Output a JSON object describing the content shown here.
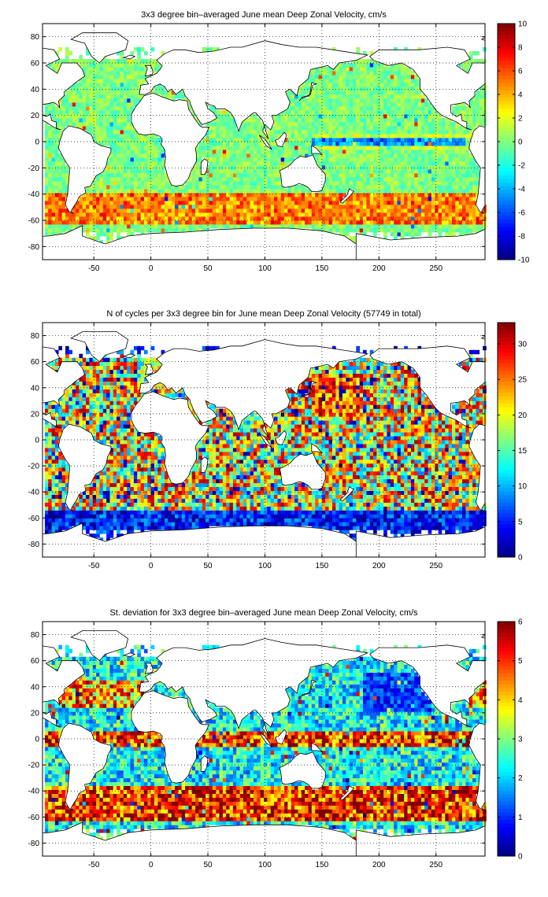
{
  "chart_data": [
    {
      "type": "heatmap",
      "title": "3x3 degree bin–averaged June mean Deep Zonal Velocity, cm/s",
      "xlim": [
        -95,
        293
      ],
      "ylim": [
        -90,
        90
      ],
      "xticks": [
        -50,
        0,
        50,
        100,
        150,
        200,
        250
      ],
      "yticks": [
        -80,
        -60,
        -40,
        -20,
        0,
        20,
        40,
        60,
        80
      ],
      "colorbar": {
        "min": -10,
        "max": 10,
        "ticks": [
          -10,
          -8,
          -6,
          -4,
          -2,
          0,
          2,
          4,
          6,
          8,
          10
        ]
      },
      "colormap": "jet",
      "grid": true,
      "bin_size_deg": 3,
      "overlay": "coastlines",
      "features": [
        {
          "region": "Southern Ocean band",
          "lat_range": [
            -62,
            -40
          ],
          "lon_range": [
            -90,
            290
          ],
          "value": 5
        },
        {
          "region": "Equatorial Pacific band",
          "lat_range": [
            -3,
            3
          ],
          "lon_range": [
            140,
            270
          ],
          "value": -4
        },
        {
          "region": "Interior ocean",
          "value": 0
        }
      ]
    },
    {
      "type": "heatmap",
      "title": "N of cycles per 3x3 degree bin for June mean Deep Zonal Velocity (57749 in total)",
      "xlim": [
        -95,
        293
      ],
      "ylim": [
        -90,
        90
      ],
      "xticks": [
        -50,
        0,
        50,
        100,
        150,
        200,
        250
      ],
      "yticks": [
        -80,
        -60,
        -40,
        -20,
        0,
        20,
        40,
        60,
        80
      ],
      "colorbar": {
        "min": 0,
        "max": 33,
        "ticks": [
          0,
          5,
          10,
          15,
          20,
          25,
          30
        ]
      },
      "colormap": "jet",
      "grid": true,
      "bin_size_deg": 3,
      "overlay": "coastlines",
      "features": [
        {
          "region": "Southern Ocean edge",
          "lat_range": [
            -70,
            -55
          ],
          "value": 3
        },
        {
          "region": "NW Pacific",
          "lat_range": [
            20,
            50
          ],
          "lon_range": [
            140,
            180
          ],
          "value": 28
        },
        {
          "region": "Interior ocean",
          "value": 18
        }
      ]
    },
    {
      "type": "heatmap",
      "title": "St. deviation for 3x3 degree bin–averaged June mean Deep Zonal Velocity, cm/s",
      "xlim": [
        -95,
        293
      ],
      "ylim": [
        -90,
        90
      ],
      "xticks": [
        -50,
        0,
        50,
        100,
        150,
        200,
        250
      ],
      "yticks": [
        -80,
        -60,
        -40,
        -20,
        0,
        20,
        40,
        60,
        80
      ],
      "colorbar": {
        "min": 0,
        "max": 6,
        "ticks": [
          0,
          1,
          2,
          3,
          4,
          5,
          6
        ]
      },
      "colormap": "jet",
      "grid": true,
      "bin_size_deg": 3,
      "overlay": "coastlines",
      "features": [
        {
          "region": "Southern Ocean band",
          "lat_range": [
            -62,
            -35
          ],
          "value": 5.8
        },
        {
          "region": "Equatorial band",
          "lat_range": [
            -6,
            6
          ],
          "value": 5.5
        },
        {
          "region": "NE Pacific",
          "lat_range": [
            25,
            50
          ],
          "lon_range": [
            190,
            240
          ],
          "value": 1.2
        },
        {
          "region": "Interior ocean",
          "value": 2.5
        }
      ]
    }
  ]
}
